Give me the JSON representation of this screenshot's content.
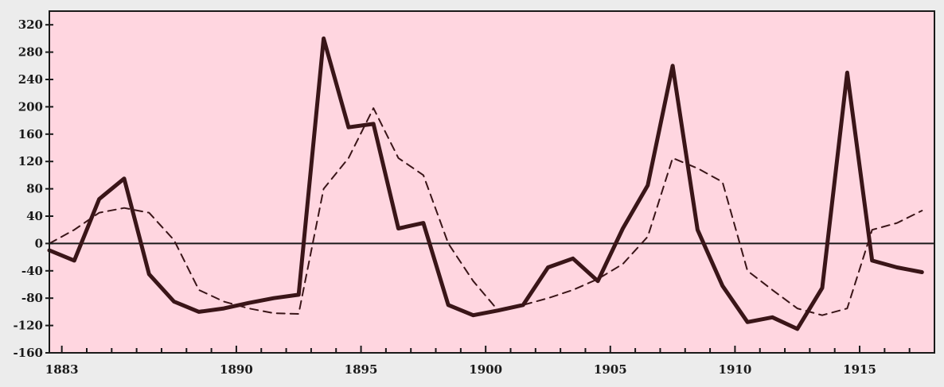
{
  "chart_data": {
    "type": "line",
    "title": "",
    "xlabel": "",
    "ylabel": "",
    "xlim": [
      1882.5,
      1918
    ],
    "ylim": [
      -160,
      340
    ],
    "x_ticks": [
      1883,
      1890,
      1895,
      1900,
      1905,
      1910,
      1915
    ],
    "y_ticks": [
      -160,
      -120,
      -80,
      -40,
      0,
      40,
      80,
      120,
      160,
      200,
      240,
      280,
      320
    ],
    "x_tick_labels": [
      "1883",
      "1890",
      "1895",
      "1900",
      "1905",
      "1910",
      "1915"
    ],
    "y_tick_labels": [
      "-160",
      "-120",
      "-80",
      "-40",
      "0",
      "40",
      "80",
      "120",
      "160",
      "200",
      "240",
      "280",
      "320"
    ],
    "grid": false,
    "background_color": "#ffd6e0",
    "frame_color": "#ececec",
    "series": [
      {
        "style": "solid",
        "color": "#3a1518",
        "x": [
          1882.5,
          1883.5,
          1884.5,
          1885.5,
          1886.5,
          1887.5,
          1888.5,
          1889.5,
          1890.5,
          1891.5,
          1892.5,
          1893.5,
          1894.5,
          1895.5,
          1896.5,
          1897.5,
          1898.5,
          1899.5,
          1900.5,
          1901.5,
          1902.5,
          1903.5,
          1904.5,
          1905.5,
          1906.5,
          1907.5,
          1908.5,
          1909.5,
          1910.5,
          1911.5,
          1912.5,
          1913.5,
          1914.5,
          1915.5,
          1916.5,
          1917.5
        ],
        "y": [
          -10,
          -25,
          65,
          95,
          -45,
          -85,
          -100,
          -95,
          -87,
          -80,
          -75,
          300,
          170,
          175,
          22,
          30,
          -90,
          -105,
          -98,
          -90,
          -35,
          -22,
          -55,
          22,
          85,
          260,
          20,
          -62,
          -115,
          -108,
          -125,
          -65,
          250,
          -25,
          -35,
          -42
        ]
      },
      {
        "style": "dashed",
        "color": "#3a1518",
        "x": [
          1882.5,
          1883.5,
          1884.5,
          1885.5,
          1886.5,
          1887.5,
          1888.5,
          1889.5,
          1890.5,
          1891.5,
          1892.5,
          1893.5,
          1894.5,
          1895.5,
          1896.5,
          1897.5,
          1898.5,
          1899.5,
          1900.5,
          1901.5,
          1902.5,
          1903.5,
          1904.5,
          1905.5,
          1906.5,
          1907.5,
          1908.5,
          1909.5,
          1910.5,
          1911.5,
          1912.5,
          1913.5,
          1914.5,
          1915.5,
          1916.5,
          1917.5
        ],
        "y": [
          0,
          20,
          45,
          52,
          45,
          5,
          -68,
          -85,
          -95,
          -102,
          -103,
          80,
          125,
          198,
          125,
          100,
          0,
          -55,
          -98,
          -90,
          -80,
          -68,
          -52,
          -30,
          10,
          125,
          110,
          90,
          -40,
          -68,
          -95,
          -105,
          -95,
          20,
          30,
          48
        ]
      }
    ]
  }
}
